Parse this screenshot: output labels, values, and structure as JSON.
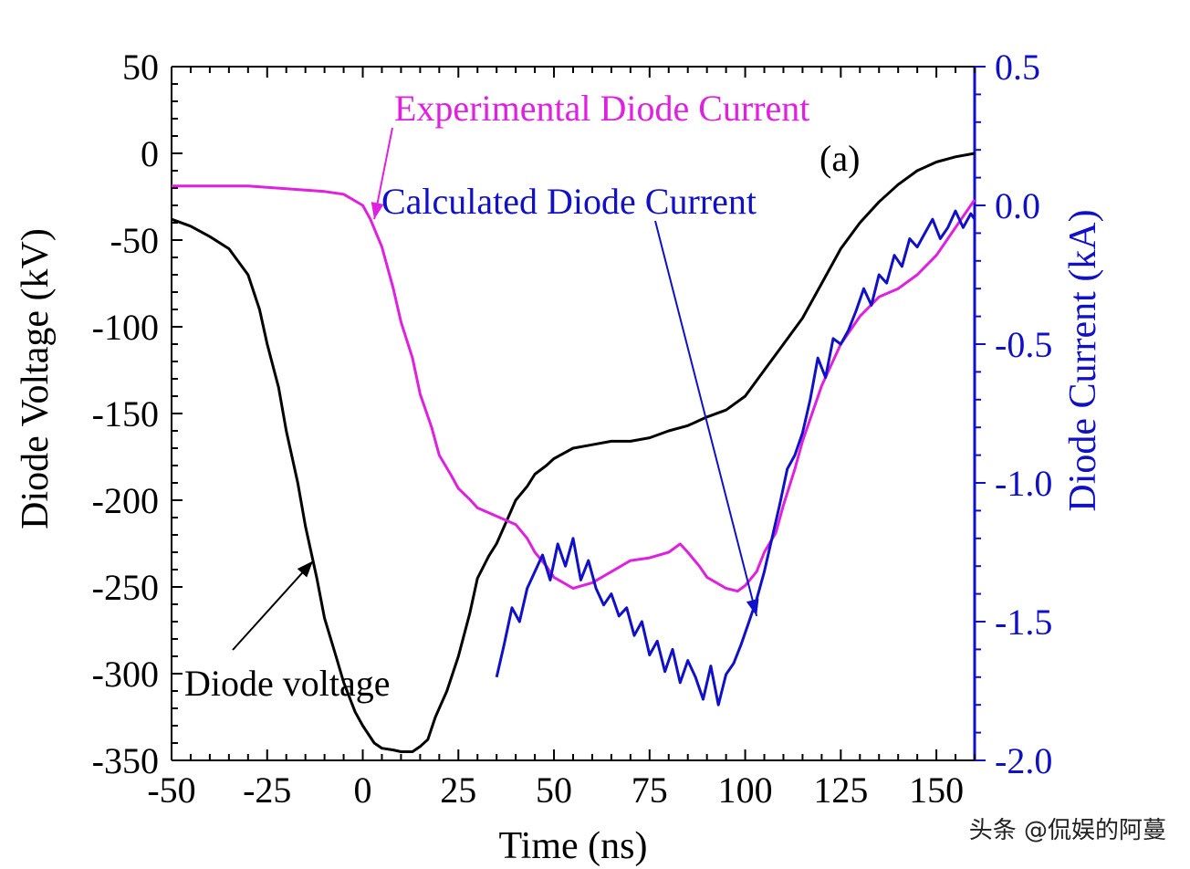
{
  "chart_data": {
    "type": "line",
    "panel_label": "(a)",
    "xlabel": "Time (ns)",
    "ylabel_left": "Diode Voltage (kV)",
    "ylabel_right": "Diode Current (kA)",
    "xlim": [
      -50,
      160
    ],
    "ylim_left": [
      -350,
      50
    ],
    "ylim_right": [
      -2.0,
      0.5
    ],
    "xticks": [
      -50,
      -25,
      0,
      25,
      50,
      75,
      100,
      125,
      150
    ],
    "yticks_left": [
      50,
      0,
      -50,
      -100,
      -150,
      -200,
      -250,
      -300,
      -350
    ],
    "yticks_right": [
      0.5,
      0.0,
      -0.5,
      -1.0,
      -1.5,
      -2.0
    ],
    "xtick_labels": [
      "-50",
      "-25",
      "0",
      "25",
      "50",
      "75",
      "100",
      "125",
      "150"
    ],
    "ytick_labels_left": [
      "50",
      "0",
      "-50",
      "-100",
      "-150",
      "-200",
      "-250",
      "-300",
      "-350"
    ],
    "ytick_labels_right": [
      "0.5",
      "0.0",
      "-0.5",
      "-1.0",
      "-1.5",
      "-2.0"
    ],
    "series": [
      {
        "name": "Diode voltage",
        "axis": "left",
        "color": "#000000",
        "x": [
          -50,
          -45,
          -40,
          -35,
          -30,
          -27,
          -25,
          -22,
          -20,
          -17,
          -15,
          -12,
          -10,
          -7,
          -5,
          -2,
          0,
          3,
          5,
          8,
          10,
          13,
          15,
          17,
          19,
          22,
          25,
          28,
          30,
          33,
          35,
          38,
          40,
          43,
          45,
          48,
          50,
          55,
          60,
          65,
          70,
          75,
          80,
          85,
          90,
          95,
          100,
          105,
          110,
          115,
          120,
          125,
          130,
          135,
          140,
          145,
          150,
          155,
          160
        ],
        "y": [
          -38,
          -42,
          -48,
          -55,
          -70,
          -90,
          -110,
          -135,
          -160,
          -190,
          -215,
          -245,
          -268,
          -290,
          -305,
          -322,
          -330,
          -340,
          -343,
          -344,
          -345,
          -345,
          -342,
          -338,
          -325,
          -310,
          -290,
          -265,
          -245,
          -232,
          -225,
          -210,
          -200,
          -192,
          -185,
          -180,
          -176,
          -170,
          -168,
          -166,
          -166,
          -164,
          -160,
          -157,
          -152,
          -148,
          -140,
          -125,
          -110,
          -95,
          -75,
          -55,
          -40,
          -28,
          -18,
          -10,
          -5,
          -2,
          0
        ]
      },
      {
        "name": "Experimental Diode Current",
        "axis": "right",
        "color": "#e020e0",
        "x": [
          -50,
          -40,
          -30,
          -20,
          -10,
          -5,
          0,
          2,
          5,
          8,
          10,
          13,
          15,
          18,
          20,
          23,
          25,
          28,
          30,
          35,
          40,
          43,
          45,
          48,
          50,
          55,
          60,
          65,
          70,
          75,
          80,
          83,
          85,
          88,
          90,
          95,
          98,
          100,
          103,
          105,
          108,
          110,
          113,
          115,
          120,
          125,
          130,
          135,
          140,
          145,
          150,
          155,
          160
        ],
        "y": [
          0.07,
          0.07,
          0.07,
          0.06,
          0.05,
          0.04,
          0.0,
          -0.05,
          -0.15,
          -0.3,
          -0.42,
          -0.55,
          -0.68,
          -0.8,
          -0.9,
          -0.97,
          -1.02,
          -1.06,
          -1.09,
          -1.12,
          -1.15,
          -1.2,
          -1.25,
          -1.3,
          -1.34,
          -1.38,
          -1.36,
          -1.32,
          -1.28,
          -1.27,
          -1.25,
          -1.22,
          -1.25,
          -1.3,
          -1.34,
          -1.38,
          -1.39,
          -1.37,
          -1.32,
          -1.25,
          -1.18,
          -1.08,
          -0.95,
          -0.85,
          -0.65,
          -0.5,
          -0.4,
          -0.33,
          -0.3,
          -0.25,
          -0.18,
          -0.08,
          0.02
        ]
      },
      {
        "name": "Calculated Diode Current",
        "axis": "right",
        "color": "#1010c8",
        "x": [
          35,
          37,
          39,
          41,
          43,
          45,
          47,
          49,
          51,
          53,
          55,
          57,
          59,
          61,
          63,
          65,
          67,
          69,
          71,
          73,
          75,
          77,
          79,
          81,
          83,
          85,
          87,
          89,
          91,
          93,
          95,
          97,
          99,
          101,
          103,
          105,
          107,
          109,
          111,
          113,
          115,
          117,
          119,
          121,
          123,
          125,
          127,
          129,
          131,
          133,
          135,
          137,
          139,
          141,
          143,
          145,
          147,
          149,
          151,
          153,
          155,
          157,
          159,
          160
        ],
        "y": [
          -1.7,
          -1.58,
          -1.45,
          -1.5,
          -1.38,
          -1.32,
          -1.26,
          -1.35,
          -1.22,
          -1.3,
          -1.2,
          -1.35,
          -1.28,
          -1.38,
          -1.44,
          -1.4,
          -1.48,
          -1.45,
          -1.55,
          -1.5,
          -1.62,
          -1.57,
          -1.68,
          -1.6,
          -1.72,
          -1.64,
          -1.7,
          -1.78,
          -1.66,
          -1.8,
          -1.69,
          -1.65,
          -1.58,
          -1.5,
          -1.42,
          -1.32,
          -1.2,
          -1.08,
          -0.95,
          -0.9,
          -0.82,
          -0.7,
          -0.55,
          -0.62,
          -0.48,
          -0.5,
          -0.45,
          -0.38,
          -0.3,
          -0.36,
          -0.25,
          -0.28,
          -0.18,
          -0.22,
          -0.12,
          -0.15,
          -0.1,
          -0.05,
          -0.12,
          -0.08,
          -0.02,
          -0.08,
          -0.03,
          -0.05
        ]
      }
    ],
    "annotations": [
      {
        "text": "Experimental Diode Current",
        "color": "#e020e0",
        "arrow_to": {
          "x": 3,
          "y_right": -0.05
        }
      },
      {
        "text": "Calculated Diode Current",
        "color": "#1010c8",
        "arrow_to": {
          "x": 103,
          "y_right": -1.48
        }
      },
      {
        "text": "Diode voltage",
        "color": "#000000",
        "arrow_to": {
          "x": -13,
          "y_left": -235
        }
      }
    ]
  },
  "watermark": {
    "text": "头条 @侃娱的阿蔓"
  },
  "colors": {
    "axis_right": "#1010c8",
    "axis_left": "#000000"
  }
}
